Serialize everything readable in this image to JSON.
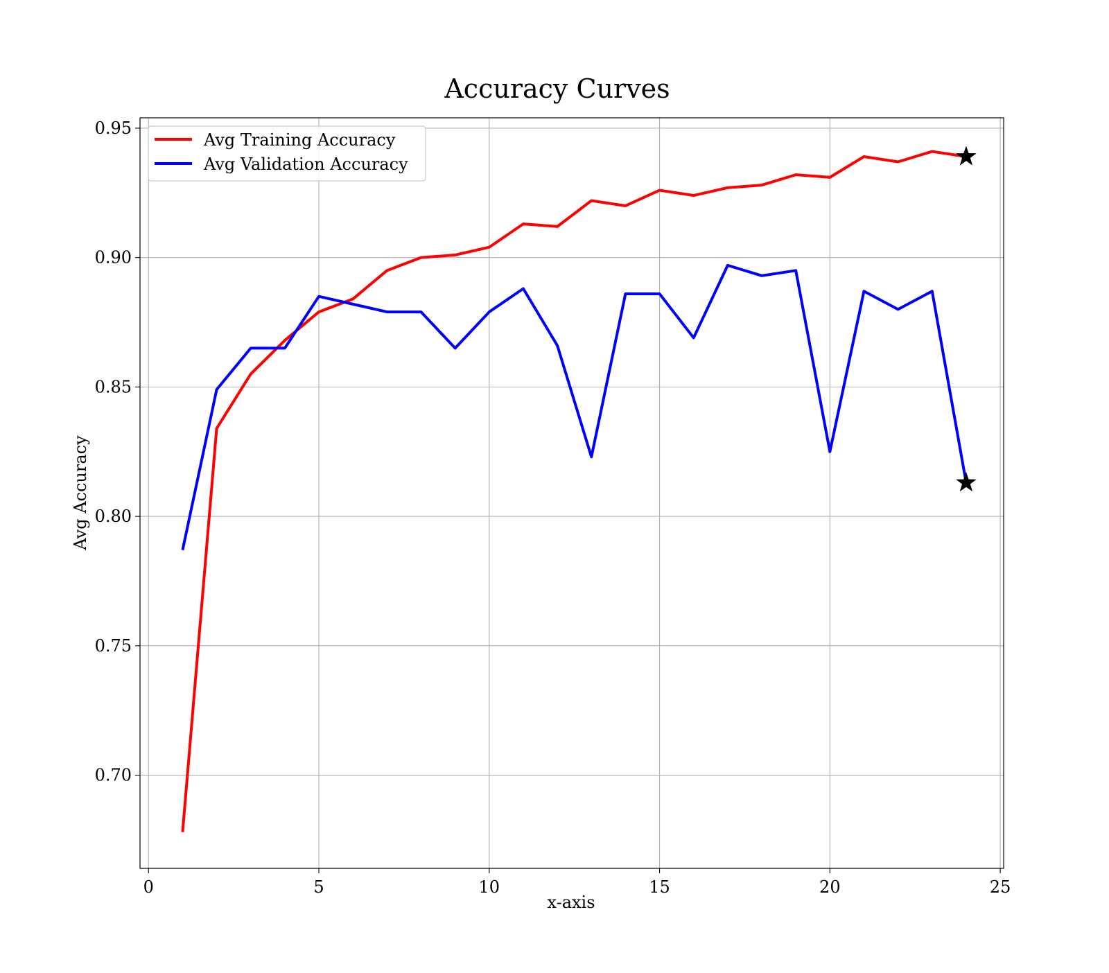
{
  "chart_data": {
    "type": "line",
    "title": "Accuracy Curves",
    "xlabel": "x-axis",
    "ylabel": "Avg Accuracy",
    "xlim": [
      -0.25,
      25.1
    ],
    "ylim": [
      0.664,
      0.954
    ],
    "xticks": [
      0,
      5,
      10,
      15,
      20,
      25
    ],
    "xtick_labels": [
      "0",
      "5",
      "10",
      "15",
      "20",
      "25"
    ],
    "yticks": [
      0.7,
      0.75,
      0.8,
      0.85,
      0.9,
      0.95
    ],
    "ytick_labels": [
      "0.70",
      "0.75",
      "0.80",
      "0.85",
      "0.90",
      "0.95"
    ],
    "grid": true,
    "legend_position": "top-left",
    "x": [
      1,
      2,
      3,
      4,
      5,
      6,
      7,
      8,
      9,
      10,
      11,
      12,
      13,
      14,
      15,
      16,
      17,
      18,
      19,
      20,
      21,
      22,
      23,
      24
    ],
    "series": [
      {
        "name": "Avg Training Accuracy",
        "color": "#ff0000",
        "values": [
          0.678,
          0.834,
          0.855,
          0.868,
          0.879,
          0.884,
          0.895,
          0.9,
          0.901,
          0.904,
          0.913,
          0.912,
          0.922,
          0.92,
          0.926,
          0.924,
          0.927,
          0.928,
          0.932,
          0.931,
          0.939,
          0.937,
          0.941,
          0.939
        ]
      },
      {
        "name": "Avg Validation Accuracy",
        "color": "#0000ff",
        "values": [
          0.787,
          0.849,
          0.865,
          0.865,
          0.885,
          0.882,
          0.879,
          0.879,
          0.865,
          0.879,
          0.888,
          0.866,
          0.823,
          0.886,
          0.886,
          0.869,
          0.897,
          0.893,
          0.895,
          0.825,
          0.887,
          0.88,
          0.887,
          0.813
        ]
      }
    ],
    "markers": [
      {
        "symbol": "star",
        "color": "#000000",
        "x": 24,
        "y": 0.939
      },
      {
        "symbol": "star",
        "color": "#000000",
        "x": 24,
        "y": 0.813
      }
    ]
  }
}
